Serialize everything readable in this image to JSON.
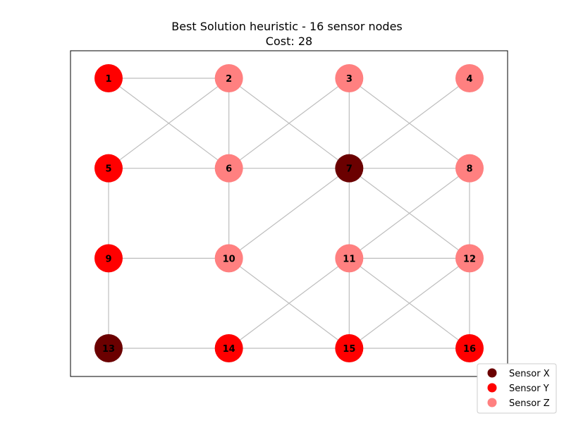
{
  "title_line1": "Best Solution heuristic - 16 sensor nodes",
  "title_line2": "Cost: 28",
  "colors": {
    "sensor_x": "#6b0000",
    "sensor_y": "#ff0000",
    "sensor_z": "#ff8080",
    "edge": "#bdbdbd"
  },
  "legend": [
    {
      "label": "Sensor X",
      "type": "sensor_x"
    },
    {
      "label": "Sensor Y",
      "type": "sensor_y"
    },
    {
      "label": "Sensor Z",
      "type": "sensor_z"
    }
  ],
  "graph": {
    "grid": {
      "columns": 4,
      "rows": 4
    },
    "nodes": [
      {
        "id": "1",
        "col": 0,
        "row": 0,
        "type": "sensor_y"
      },
      {
        "id": "2",
        "col": 1,
        "row": 0,
        "type": "sensor_z"
      },
      {
        "id": "3",
        "col": 2,
        "row": 0,
        "type": "sensor_z"
      },
      {
        "id": "4",
        "col": 3,
        "row": 0,
        "type": "sensor_z"
      },
      {
        "id": "5",
        "col": 0,
        "row": 1,
        "type": "sensor_y"
      },
      {
        "id": "6",
        "col": 1,
        "row": 1,
        "type": "sensor_z"
      },
      {
        "id": "7",
        "col": 2,
        "row": 1,
        "type": "sensor_x"
      },
      {
        "id": "8",
        "col": 3,
        "row": 1,
        "type": "sensor_z"
      },
      {
        "id": "9",
        "col": 0,
        "row": 2,
        "type": "sensor_y"
      },
      {
        "id": "10",
        "col": 1,
        "row": 2,
        "type": "sensor_z"
      },
      {
        "id": "11",
        "col": 2,
        "row": 2,
        "type": "sensor_z"
      },
      {
        "id": "12",
        "col": 3,
        "row": 2,
        "type": "sensor_z"
      },
      {
        "id": "13",
        "col": 0,
        "row": 3,
        "type": "sensor_x"
      },
      {
        "id": "14",
        "col": 1,
        "row": 3,
        "type": "sensor_y"
      },
      {
        "id": "15",
        "col": 2,
        "row": 3,
        "type": "sensor_y"
      },
      {
        "id": "16",
        "col": 3,
        "row": 3,
        "type": "sensor_y"
      }
    ],
    "edges": [
      [
        "1",
        "2"
      ],
      [
        "1",
        "6"
      ],
      [
        "2",
        "5"
      ],
      [
        "2",
        "6"
      ],
      [
        "2",
        "7"
      ],
      [
        "3",
        "6"
      ],
      [
        "3",
        "7"
      ],
      [
        "3",
        "8"
      ],
      [
        "4",
        "7"
      ],
      [
        "5",
        "6"
      ],
      [
        "5",
        "9"
      ],
      [
        "6",
        "7"
      ],
      [
        "6",
        "10"
      ],
      [
        "7",
        "8"
      ],
      [
        "7",
        "10"
      ],
      [
        "7",
        "11"
      ],
      [
        "7",
        "12"
      ],
      [
        "8",
        "11"
      ],
      [
        "8",
        "12"
      ],
      [
        "9",
        "10"
      ],
      [
        "9",
        "13"
      ],
      [
        "10",
        "15"
      ],
      [
        "11",
        "12"
      ],
      [
        "11",
        "14"
      ],
      [
        "11",
        "15"
      ],
      [
        "11",
        "16"
      ],
      [
        "12",
        "15"
      ],
      [
        "12",
        "16"
      ],
      [
        "13",
        "14"
      ],
      [
        "14",
        "15"
      ],
      [
        "15",
        "16"
      ]
    ]
  }
}
